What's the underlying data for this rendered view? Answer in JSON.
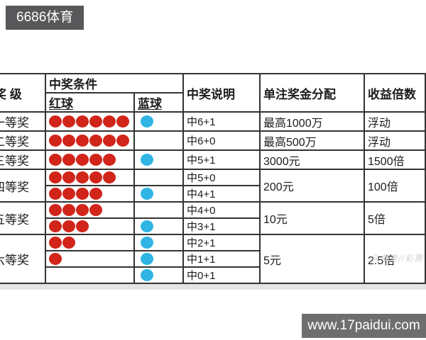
{
  "badge": {
    "label": "6686体育"
  },
  "footer": {
    "url": "www.17paidui.com"
  },
  "watermark": {
    "text": "头条号//彩票"
  },
  "colors": {
    "red_ball": "#d1251a",
    "blue_ball": "#2fb4e4",
    "badge_bg": "#58585a",
    "footer_bg": "#6e6e6e"
  },
  "table": {
    "headers": {
      "level": "奖 级",
      "condition": "中奖条件",
      "red": "红球",
      "blue": "蓝球",
      "desc": "中奖说明",
      "prize": "单注奖金分配",
      "multiple": "收益倍数"
    },
    "rows": [
      {
        "level": "一等奖",
        "red": 6,
        "blue": 1,
        "desc": "中6+1",
        "prize": "最高1000万",
        "multiple": "浮动"
      },
      {
        "level": "二等奖",
        "red": 6,
        "blue": 0,
        "desc": "中6+0",
        "prize": "最高500万",
        "multiple": "浮动"
      },
      {
        "level": "三等奖",
        "red": 5,
        "blue": 1,
        "desc": "中5+1",
        "prize": "3000元",
        "multiple": "1500倍"
      },
      {
        "level": "四等奖",
        "red": 5,
        "blue": 0,
        "desc": "中5+0",
        "prize": "200元",
        "multiple": "100倍"
      },
      {
        "red": 4,
        "blue": 1,
        "desc": "中4+1"
      },
      {
        "level": "五等奖",
        "red": 4,
        "blue": 0,
        "desc": "中4+0",
        "prize": "10元",
        "multiple": "5倍"
      },
      {
        "red": 3,
        "blue": 1,
        "desc": "中3+1"
      },
      {
        "level": "六等奖",
        "red": 2,
        "blue": 1,
        "desc": "中2+1",
        "prize": "5元",
        "multiple": "2.5倍"
      },
      {
        "red": 1,
        "blue": 1,
        "desc": "中1+1"
      },
      {
        "red": 0,
        "blue": 1,
        "desc": "中0+1"
      }
    ]
  }
}
